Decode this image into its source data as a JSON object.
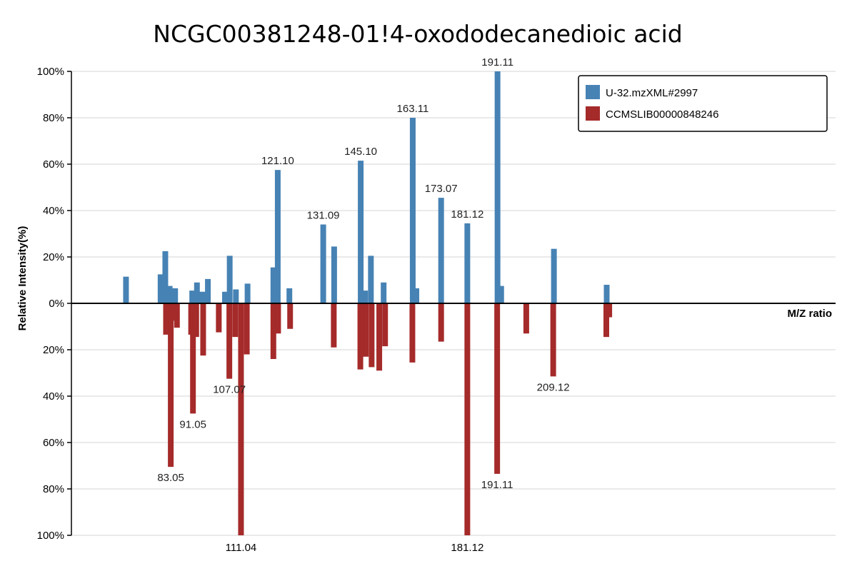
{
  "chart_data": {
    "type": "bar",
    "title": "NCGC00381248-01!4-oxododecanedioic acid",
    "xlabel": "M/Z ratio",
    "ylabel": "Relative Intensity(%)",
    "ylim_top": [
      0,
      100
    ],
    "ylim_bottom": [
      0,
      100
    ],
    "xlim": [
      55,
      265
    ],
    "y_ticks_top": [
      "100%",
      "80%",
      "60%",
      "40%",
      "20%",
      "0%"
    ],
    "y_ticks_bottom": [
      "20%",
      "40%",
      "60%",
      "80%",
      "100%"
    ],
    "x_tick_labels": [
      "111.04",
      "181.12"
    ],
    "grid": true,
    "legend_position": "top-right",
    "colors": {
      "top": "#4682b4",
      "bottom": "#a52a2a"
    },
    "series": [
      {
        "name": "U-32.mzXML#2997",
        "direction": "up",
        "peaks": [
          {
            "mz": 70.0,
            "intensity": 11.5
          },
          {
            "mz": 79.5,
            "intensity": 12.5
          },
          {
            "mz": 80.8,
            "intensity": 22.5
          },
          {
            "mz": 82.0,
            "intensity": 7.5
          },
          {
            "mz": 83.5,
            "intensity": 6.5
          },
          {
            "mz": 88.2,
            "intensity": 5.5
          },
          {
            "mz": 89.5,
            "intensity": 9.0
          },
          {
            "mz": 91.0,
            "intensity": 5.0
          },
          {
            "mz": 92.5,
            "intensity": 10.5
          },
          {
            "mz": 97.2,
            "intensity": 5.0
          },
          {
            "mz": 98.5,
            "intensity": 20.5
          },
          {
            "mz": 100.2,
            "intensity": 6.0
          },
          {
            "mz": 103.4,
            "intensity": 8.5
          },
          {
            "mz": 110.5,
            "intensity": 15.5
          },
          {
            "mz": 111.7,
            "intensity": 57.5,
            "label": "121.10"
          },
          {
            "mz": 114.9,
            "intensity": 6.5
          },
          {
            "mz": 124.2,
            "intensity": 34.0,
            "label": "131.09"
          },
          {
            "mz": 127.2,
            "intensity": 24.5
          },
          {
            "mz": 134.5,
            "intensity": 61.5,
            "label": "145.10"
          },
          {
            "mz": 135.7,
            "intensity": 5.5
          },
          {
            "mz": 137.3,
            "intensity": 20.5
          },
          {
            "mz": 140.8,
            "intensity": 9.0
          },
          {
            "mz": 148.8,
            "intensity": 80.0,
            "label": "163.11"
          },
          {
            "mz": 149.8,
            "intensity": 6.5
          },
          {
            "mz": 156.6,
            "intensity": 45.5,
            "label": "173.07"
          },
          {
            "mz": 163.8,
            "intensity": 34.5,
            "label": "181.12"
          },
          {
            "mz": 172.1,
            "intensity": 100.0,
            "label": "191.11"
          },
          {
            "mz": 173.1,
            "intensity": 7.5
          },
          {
            "mz": 187.6,
            "intensity": 23.5
          },
          {
            "mz": 202.1,
            "intensity": 8.0
          }
        ]
      },
      {
        "name": "CCMSLIB00000848246",
        "direction": "down",
        "peaks": [
          {
            "mz": 81.0,
            "intensity": 13.5
          },
          {
            "mz": 82.3,
            "intensity": 70.5,
            "label": "83.05"
          },
          {
            "mz": 83.2,
            "intensity": 7.5
          },
          {
            "mz": 84.0,
            "intensity": 10.5
          },
          {
            "mz": 87.9,
            "intensity": 13.5
          },
          {
            "mz": 88.4,
            "intensity": 47.5,
            "label": "91.05"
          },
          {
            "mz": 89.3,
            "intensity": 14.5
          },
          {
            "mz": 91.2,
            "intensity": 22.5
          },
          {
            "mz": 95.5,
            "intensity": 12.5
          },
          {
            "mz": 98.4,
            "intensity": 32.5,
            "label": "107.07"
          },
          {
            "mz": 100.0,
            "intensity": 14.5
          },
          {
            "mz": 101.6,
            "intensity": 100.0
          },
          {
            "mz": 103.2,
            "intensity": 22.0
          },
          {
            "mz": 110.5,
            "intensity": 24.0
          },
          {
            "mz": 111.8,
            "intensity": 13.0
          },
          {
            "mz": 115.1,
            "intensity": 11.0
          },
          {
            "mz": 127.1,
            "intensity": 19.0
          },
          {
            "mz": 134.4,
            "intensity": 28.5
          },
          {
            "mz": 135.9,
            "intensity": 23.0
          },
          {
            "mz": 137.5,
            "intensity": 27.5
          },
          {
            "mz": 139.6,
            "intensity": 29.0
          },
          {
            "mz": 141.2,
            "intensity": 18.5
          },
          {
            "mz": 148.7,
            "intensity": 25.5
          },
          {
            "mz": 156.6,
            "intensity": 16.5
          },
          {
            "mz": 163.8,
            "intensity": 100.0
          },
          {
            "mz": 172.0,
            "intensity": 73.5,
            "label": "191.11"
          },
          {
            "mz": 180.0,
            "intensity": 13.0
          },
          {
            "mz": 187.4,
            "intensity": 31.5,
            "label": "209.12"
          },
          {
            "mz": 202.0,
            "intensity": 14.5
          },
          {
            "mz": 202.8,
            "intensity": 6.0
          }
        ]
      }
    ]
  }
}
